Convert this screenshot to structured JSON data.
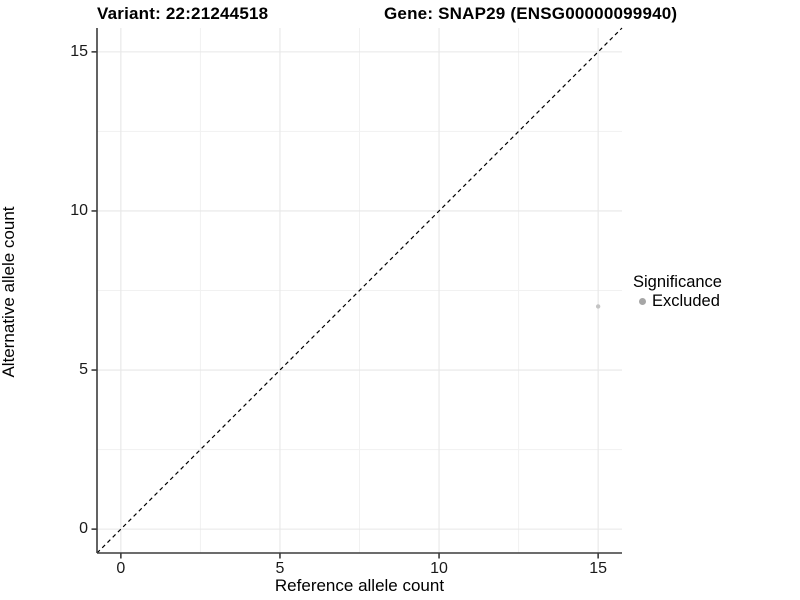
{
  "titles": {
    "variant": "Variant: 22:21244518",
    "gene": "Gene: SNAP29 (ENSG00000099940)"
  },
  "axes": {
    "x_label": "Reference allele count",
    "y_label": "Alternative allele count"
  },
  "legend": {
    "title": "Significance",
    "items": [
      {
        "label": "Excluded",
        "color": "#a6a6a6"
      }
    ]
  },
  "colors": {
    "background": "#ffffff",
    "grid_major": "#e7e7e7",
    "grid_minor": "#f1f1f1",
    "axis_line": "#3c3c3c",
    "tick_mark": "#3c3c3c",
    "identity_line": "#000000",
    "point": "#c4c4c4",
    "text": "#000000"
  },
  "chart_data": {
    "type": "scatter",
    "title": "Variant: 22:21244518   Gene: SNAP29 (ENSG00000099940)",
    "xlabel": "Reference allele count",
    "ylabel": "Alternative allele count",
    "xlim": [
      -0.75,
      15.75
    ],
    "ylim": [
      -0.75,
      15.75
    ],
    "x_ticks": [
      0,
      5,
      10,
      15
    ],
    "y_ticks": [
      0,
      5,
      10,
      15
    ],
    "x_minor_ticks": [
      2.5,
      7.5,
      12.5
    ],
    "y_minor_ticks": [
      2.5,
      7.5,
      12.5
    ],
    "grid": true,
    "legend_position": "right",
    "series": [
      {
        "name": "Excluded",
        "color": "#c4c4c4",
        "points": [
          {
            "x": 15,
            "y": 7
          }
        ]
      }
    ],
    "reference_line": {
      "type": "identity",
      "equation": "y = x",
      "style": "dashed",
      "color": "#000000"
    }
  }
}
